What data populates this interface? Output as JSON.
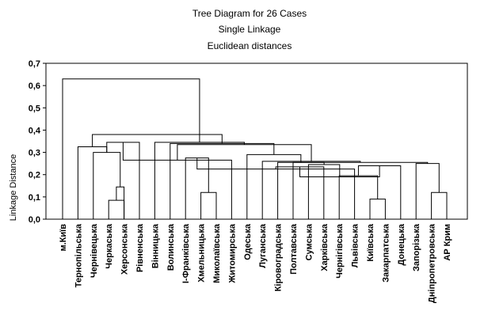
{
  "chart_data": {
    "type": "dendrogram",
    "title_lines": [
      "Tree Diagram for 26 Cases",
      "Single Linkage",
      "Euclidean distances"
    ],
    "ylabel": "Linkage Distance",
    "ylim": [
      0,
      0.7
    ],
    "yticks": [
      "0,0",
      "0,1",
      "0,2",
      "0,3",
      "0,4",
      "0,5",
      "0,6",
      "0,7"
    ],
    "leaves": [
      "м.Київ",
      "Тернопільська",
      "Чернівецька",
      "Черкаська",
      "Херсонська",
      "Рівненська",
      "Вінницька",
      "Волинська",
      "І-Франківська",
      "Хмельницька",
      "Миколаївська",
      "Житомирська",
      "Одеська",
      "Луганська",
      "Кіровоградська",
      "Полтавська",
      "Сумська",
      "Харківська",
      "Чернігівська",
      "Львівська",
      "Київська",
      "Закарпатська",
      "Донецька",
      "Запорізька",
      "Дніпропетровська",
      "АР Крим"
    ],
    "merges": [
      {
        "a": 3,
        "b": 4,
        "h": 0.085
      },
      {
        "a": 26,
        "b": 4,
        "h": 0.145
      },
      {
        "a": 2,
        "b": 27,
        "h": 0.3
      },
      {
        "a": 1,
        "b": 28,
        "h": 0.325
      },
      {
        "a": 28,
        "b": 5,
        "h": 0.345
      },
      {
        "a": 9,
        "b": 10,
        "h": 0.12
      },
      {
        "a": 30,
        "b": 11,
        "h": 0.265
      },
      {
        "a": 8,
        "b": 31,
        "h": 0.275
      },
      {
        "a": 20,
        "b": 21,
        "h": 0.09
      },
      {
        "a": 19,
        "b": 33,
        "h": 0.225
      },
      {
        "a": 18,
        "b": 34,
        "h": 0.195
      },
      {
        "a": 17,
        "b": 35,
        "h": 0.235
      },
      {
        "a": 36,
        "b": 22,
        "h": 0.24
      },
      {
        "a": 24,
        "b": 25,
        "h": 0.12
      },
      {
        "a": 37,
        "b": 38,
        "h": 0.19
      },
      {
        "a": 39,
        "b": 23,
        "h": 0.25
      },
      {
        "a": 16,
        "b": 40,
        "h": 0.245
      },
      {
        "a": 41,
        "b": 15,
        "h": 0.255
      },
      {
        "a": 14,
        "b": 42,
        "h": 0.255
      },
      {
        "a": 13,
        "b": 43,
        "h": 0.26
      },
      {
        "a": 12,
        "b": 44,
        "h": 0.29
      },
      {
        "a": 32,
        "b": 45,
        "h": 0.335
      },
      {
        "a": 7,
        "b": 46,
        "h": 0.34
      },
      {
        "a": 6,
        "b": 47,
        "h": 0.345
      },
      {
        "a": 29,
        "b": 48,
        "h": 0.38
      },
      {
        "a": 0,
        "b": 49,
        "h": 0.63
      }
    ]
  }
}
